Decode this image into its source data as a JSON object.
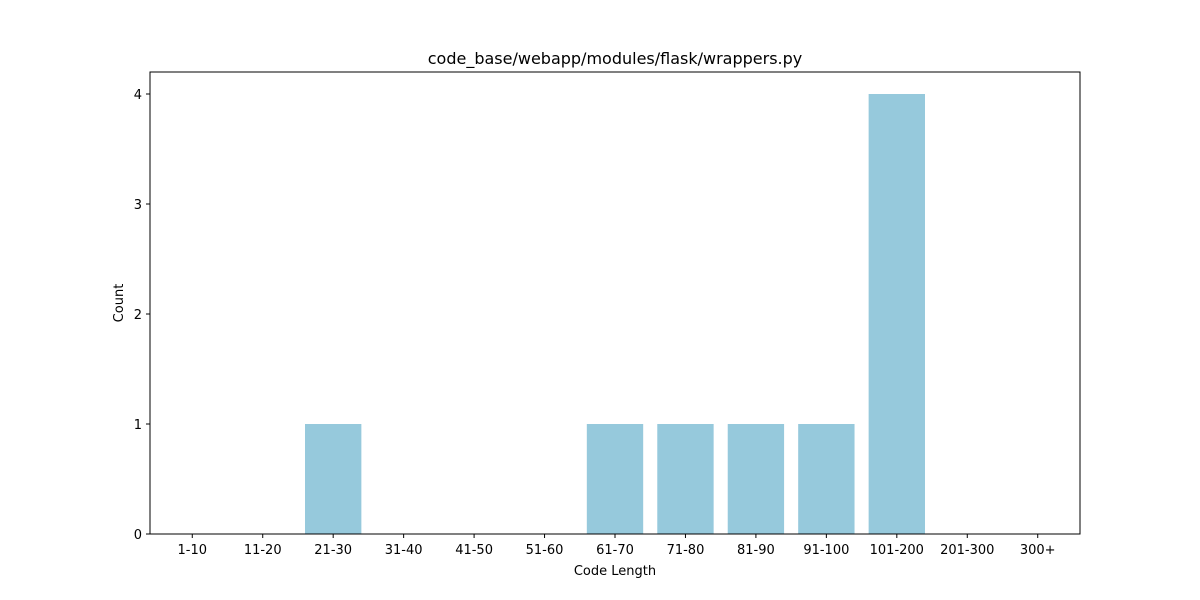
{
  "chart_data": {
    "type": "bar",
    "title": "code_base/webapp/modules/flask/wrappers.py",
    "xlabel": "Code Length",
    "ylabel": "Count",
    "categories": [
      "1-10",
      "11-20",
      "21-30",
      "31-40",
      "41-50",
      "51-60",
      "61-70",
      "71-80",
      "81-90",
      "91-100",
      "101-200",
      "201-300",
      "300+"
    ],
    "values": [
      0,
      0,
      1,
      0,
      0,
      0,
      1,
      1,
      1,
      1,
      4,
      0,
      0
    ],
    "ylim": [
      0,
      4.2
    ],
    "yticks": [
      0,
      1,
      2,
      3,
      4
    ],
    "grid": false,
    "legend": "none",
    "bar_color": "#96c9dc"
  }
}
